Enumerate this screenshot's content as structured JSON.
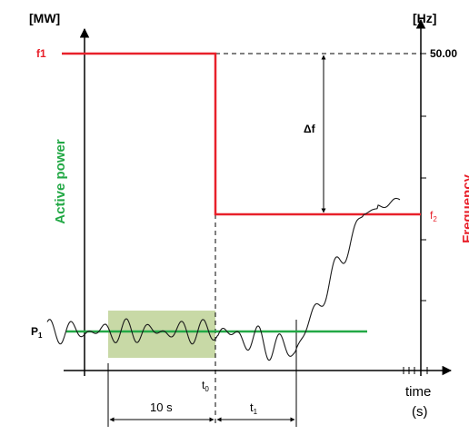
{
  "left_axis_unit": "[MW]",
  "right_axis_unit": "[Hz]",
  "left_axis_title": "Active power",
  "right_axis_title": "Frequency",
  "f1_label": "f1",
  "f2_label": "f2",
  "f2_main": "f",
  "f2_sub": "2",
  "freq_value": "50.00",
  "delta_f_label": "Δf",
  "p1_main": "P",
  "p1_sub": "1",
  "t0_main": "t",
  "t0_sub": "0",
  "t1_main": "t",
  "t1_sub": "1",
  "ten_s_label": "10 s",
  "time_label": "time",
  "time_unit": "(s)",
  "colors": {
    "frequency": "#e8202a",
    "active_power": "#22a845",
    "window": "#c8d9a6",
    "signal": "#1a1a1a"
  }
}
